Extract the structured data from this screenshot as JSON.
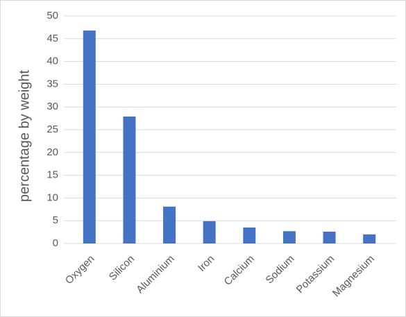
{
  "chart_data": {
    "type": "bar",
    "y_label": "percentage by weight",
    "categories": [
      "Oxygen",
      "Silicon",
      "Aluminium",
      "Iron",
      "Calcium",
      "Sodium",
      "Potassium",
      "Magnesium"
    ],
    "values": [
      46.8,
      27.9,
      8.1,
      4.9,
      3.5,
      2.7,
      2.6,
      2.0
    ],
    "color": "#4472c4",
    "ylim": [
      0,
      50
    ],
    "yticks": [
      0,
      5,
      10,
      15,
      20,
      25,
      30,
      35,
      40,
      45,
      50
    ],
    "grid": true
  }
}
